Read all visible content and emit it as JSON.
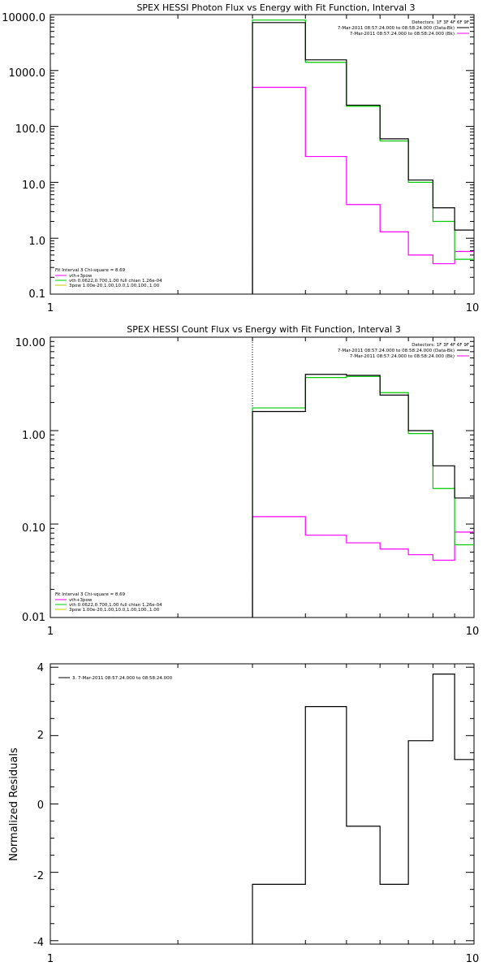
{
  "colors": {
    "data": "#000000",
    "total": "#ff00ff",
    "vth": "#00cc00",
    "bpow": "#c8c800"
  },
  "chart_data": [
    {
      "type": "line",
      "scale": "log-log",
      "title": "SPEX HESSI Photon Flux vs Energy with Fit Function, Interval 3",
      "xlim": [
        1,
        10
      ],
      "ylim": [
        0.1,
        10000
      ],
      "ytick_labels": [
        "10000.0",
        "1000.0",
        "100.0",
        "10.0",
        "1.0",
        "0.1"
      ],
      "xtick_labels": [
        "1",
        "10"
      ],
      "detectors_label": "Detectors: 1F 3F 4F 6F 9F",
      "legend_right": [
        {
          "text": "7-Mar-2011 08:57:24.000 to 08:58:24.000 (Data-Bk)",
          "color": "#000000"
        },
        {
          "text": "7-Mar-2011 08:57:24.000 to 08:58:24.000 (Bk)",
          "color": "#ff00ff"
        }
      ],
      "fit_line": "Fit Interval 3   Chi-square = 8.69",
      "legend_left": [
        {
          "text": "vth+3pow",
          "color": "#ff00ff"
        },
        {
          "text": "vth 0.0622,0.700,1.00   full chian 1.26e-04",
          "color": "#00cc00"
        },
        {
          "text": "3pow 1.00e-20,1.00,10.0,1.00,100.,1.00",
          "color": "#c8c800"
        }
      ],
      "vline_x": 3,
      "edges": [
        3,
        4,
        5,
        6,
        7,
        8,
        9,
        10
      ],
      "series": [
        {
          "name": "Data-Bk",
          "color": "#000000",
          "values": [
            7200,
            1550,
            240,
            60,
            11,
            3.5,
            1.4
          ]
        },
        {
          "name": "vth",
          "color": "#00cc00",
          "values": [
            8000,
            1400,
            230,
            55,
            10,
            2.0,
            0.42
          ]
        },
        {
          "name": "Bk",
          "color": "#ff00ff",
          "values": [
            500,
            29,
            4,
            1.3,
            0.5,
            0.35,
            0.58
          ]
        }
      ]
    },
    {
      "type": "line",
      "scale": "log-log",
      "title": "SPEX HESSI Count Flux vs Energy with Fit Function, Interval 3",
      "xlim": [
        1,
        10
      ],
      "ylim": [
        0.01,
        10
      ],
      "ytick_labels": [
        "10.00",
        "1.00",
        "0.10",
        "0.01"
      ],
      "xtick_labels": [
        "1",
        "10"
      ],
      "detectors_label": "Detectors: 1F 3F 4F 6F 9F",
      "legend_right": [
        {
          "text": "7-Mar-2011 08:57:24.000 to 08:58:24.000 (Data-Bk)",
          "color": "#000000"
        },
        {
          "text": "7-Mar-2011 08:57:24.000 to 08:58:24.000 (Bk)",
          "color": "#ff00ff"
        }
      ],
      "fit_line": "Fit Interval 3   Chi-square = 8.69",
      "legend_left": [
        {
          "text": "vth+3pow",
          "color": "#ff00ff"
        },
        {
          "text": "vth 0.0622,0.700,1.00   full chian 1.26e-04",
          "color": "#00cc00"
        },
        {
          "text": "3pow 1.00e-20,1.00,10.0,1.00,100.,1.00",
          "color": "#c8c800"
        }
      ],
      "vline_x": 3,
      "edges": [
        3,
        4,
        5,
        6,
        7,
        8,
        9,
        10
      ],
      "series": [
        {
          "name": "Data-Bk",
          "color": "#000000",
          "values": [
            1.6,
            4.0,
            3.9,
            2.4,
            1.0,
            0.42,
            0.19
          ]
        },
        {
          "name": "vth",
          "color": "#00cc00",
          "values": [
            1.75,
            3.7,
            3.8,
            2.55,
            0.93,
            0.24,
            0.06
          ]
        },
        {
          "name": "Bk",
          "color": "#ff00ff",
          "values": [
            0.12,
            0.076,
            0.063,
            0.054,
            0.047,
            0.041,
            0.082
          ]
        }
      ]
    },
    {
      "type": "line",
      "scale": "log-linear",
      "title": "",
      "xlim": [
        1,
        10
      ],
      "ylim": [
        -4.1,
        4.1
      ],
      "ylabel": "Normalized Residuals",
      "yticks": [
        4,
        2,
        0,
        -2,
        -4
      ],
      "ytick_labels": [
        "4",
        "2",
        "0",
        "-2",
        "-4"
      ],
      "xtick_labels": [
        "1",
        "10"
      ],
      "legend": "3. 7-Mar-2011 08:57:24.000 to 08:58:24.000",
      "edges": [
        3,
        4,
        5,
        6,
        7,
        8,
        9,
        10
      ],
      "series": [
        {
          "name": "",
          "color": "#000000",
          "values": [
            -2.35,
            2.85,
            -0.65,
            -2.35,
            1.85,
            3.8,
            1.3
          ]
        }
      ]
    }
  ]
}
